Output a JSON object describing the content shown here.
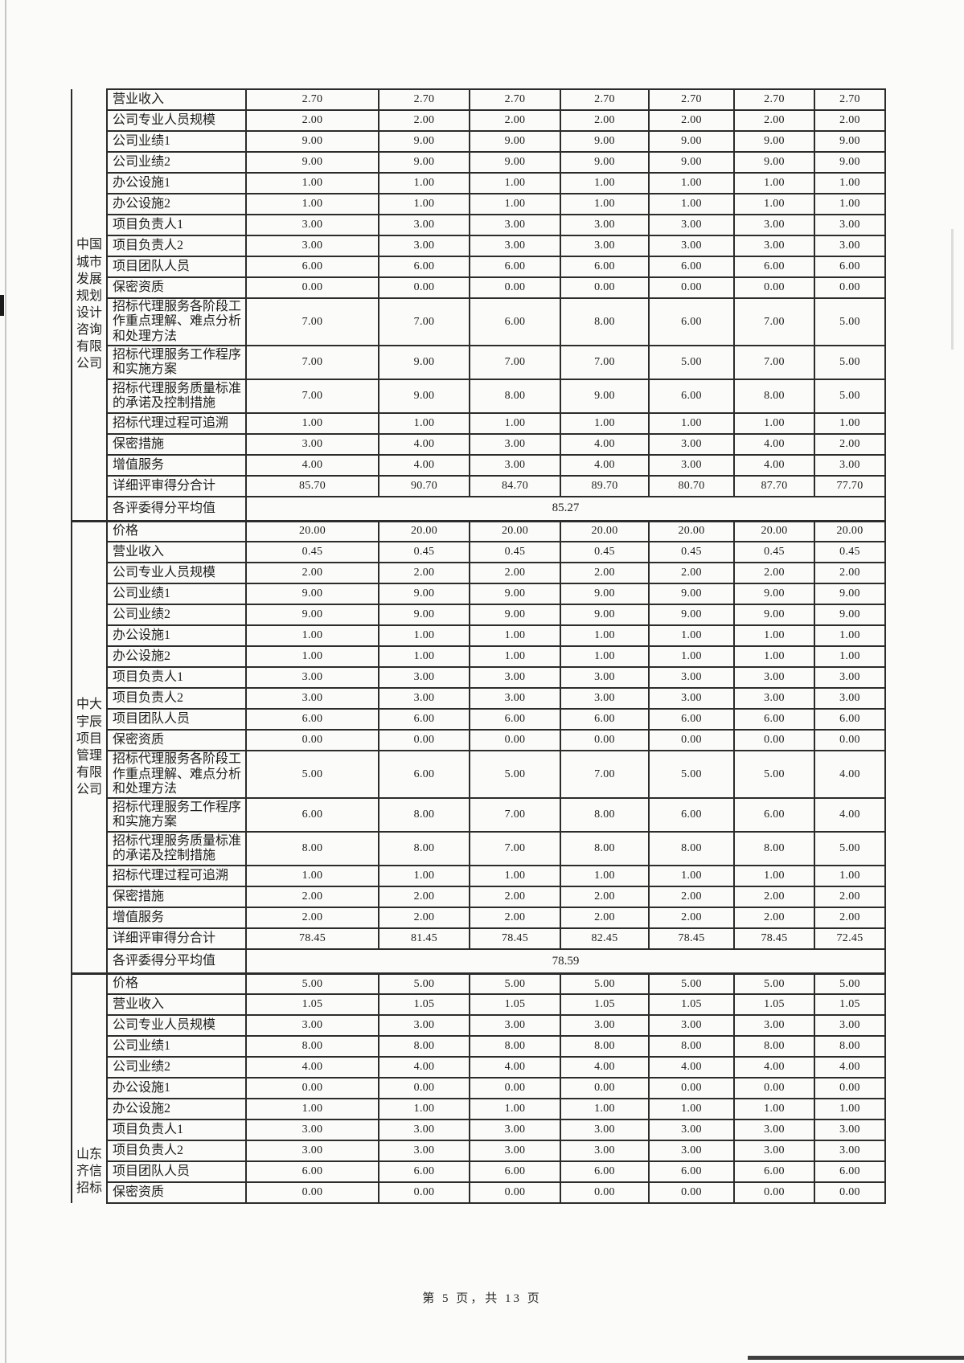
{
  "document": {
    "footer": "第 5 页，共 13 页"
  },
  "table": {
    "score_columns": 7,
    "sections": [
      {
        "company": "中国城市发展规划设计咨询有限公司",
        "company_lines": [
          "中国",
          "城市",
          "发展",
          "规划",
          "设计",
          "咨询",
          "有限",
          "公司"
        ],
        "rows": [
          {
            "label": "营业收入",
            "values": [
              "2.70",
              "2.70",
              "2.70",
              "2.70",
              "2.70",
              "2.70",
              "2.70"
            ]
          },
          {
            "label": "公司专业人员规模",
            "values": [
              "2.00",
              "2.00",
              "2.00",
              "2.00",
              "2.00",
              "2.00",
              "2.00"
            ]
          },
          {
            "label": "公司业绩1",
            "values": [
              "9.00",
              "9.00",
              "9.00",
              "9.00",
              "9.00",
              "9.00",
              "9.00"
            ]
          },
          {
            "label": "公司业绩2",
            "values": [
              "9.00",
              "9.00",
              "9.00",
              "9.00",
              "9.00",
              "9.00",
              "9.00"
            ]
          },
          {
            "label": "办公设施1",
            "values": [
              "1.00",
              "1.00",
              "1.00",
              "1.00",
              "1.00",
              "1.00",
              "1.00"
            ]
          },
          {
            "label": "办公设施2",
            "values": [
              "1.00",
              "1.00",
              "1.00",
              "1.00",
              "1.00",
              "1.00",
              "1.00"
            ]
          },
          {
            "label": "项目负责人1",
            "values": [
              "3.00",
              "3.00",
              "3.00",
              "3.00",
              "3.00",
              "3.00",
              "3.00"
            ]
          },
          {
            "label": "项目负责人2",
            "values": [
              "3.00",
              "3.00",
              "3.00",
              "3.00",
              "3.00",
              "3.00",
              "3.00"
            ]
          },
          {
            "label": "项目团队人员",
            "values": [
              "6.00",
              "6.00",
              "6.00",
              "6.00",
              "6.00",
              "6.00",
              "6.00"
            ]
          },
          {
            "label": "保密资质",
            "values": [
              "0.00",
              "0.00",
              "0.00",
              "0.00",
              "0.00",
              "0.00",
              "0.00"
            ]
          },
          {
            "label": "招标代理服务各阶段工作重点理解、难点分析和处理方法",
            "values": [
              "7.00",
              "7.00",
              "6.00",
              "8.00",
              "6.00",
              "7.00",
              "5.00"
            ]
          },
          {
            "label": "招标代理服务工作程序和实施方案",
            "values": [
              "7.00",
              "9.00",
              "7.00",
              "7.00",
              "5.00",
              "7.00",
              "5.00"
            ]
          },
          {
            "label": "招标代理服务质量标准的承诺及控制措施",
            "values": [
              "7.00",
              "9.00",
              "8.00",
              "9.00",
              "6.00",
              "8.00",
              "5.00"
            ]
          },
          {
            "label": "招标代理过程可追溯",
            "values": [
              "1.00",
              "1.00",
              "1.00",
              "1.00",
              "1.00",
              "1.00",
              "1.00"
            ]
          },
          {
            "label": "保密措施",
            "values": [
              "3.00",
              "4.00",
              "3.00",
              "4.00",
              "3.00",
              "4.00",
              "2.00"
            ]
          },
          {
            "label": "增值服务",
            "values": [
              "4.00",
              "4.00",
              "3.00",
              "4.00",
              "3.00",
              "4.00",
              "3.00"
            ]
          },
          {
            "label": "详细评审得分合计",
            "values": [
              "85.70",
              "90.70",
              "84.70",
              "89.70",
              "80.70",
              "87.70",
              "77.70"
            ]
          },
          {
            "label": "各评委得分平均值",
            "average": "85.27"
          }
        ]
      },
      {
        "company": "中大宇辰项目管理有限公司",
        "company_lines": [
          "中大",
          "宇辰",
          "项目",
          "管理",
          "有限",
          "公司"
        ],
        "rows": [
          {
            "label": "价格",
            "values": [
              "20.00",
              "20.00",
              "20.00",
              "20.00",
              "20.00",
              "20.00",
              "20.00"
            ]
          },
          {
            "label": "营业收入",
            "values": [
              "0.45",
              "0.45",
              "0.45",
              "0.45",
              "0.45",
              "0.45",
              "0.45"
            ]
          },
          {
            "label": "公司专业人员规模",
            "values": [
              "2.00",
              "2.00",
              "2.00",
              "2.00",
              "2.00",
              "2.00",
              "2.00"
            ]
          },
          {
            "label": "公司业绩1",
            "values": [
              "9.00",
              "9.00",
              "9.00",
              "9.00",
              "9.00",
              "9.00",
              "9.00"
            ]
          },
          {
            "label": "公司业绩2",
            "values": [
              "9.00",
              "9.00",
              "9.00",
              "9.00",
              "9.00",
              "9.00",
              "9.00"
            ]
          },
          {
            "label": "办公设施1",
            "values": [
              "1.00",
              "1.00",
              "1.00",
              "1.00",
              "1.00",
              "1.00",
              "1.00"
            ]
          },
          {
            "label": "办公设施2",
            "values": [
              "1.00",
              "1.00",
              "1.00",
              "1.00",
              "1.00",
              "1.00",
              "1.00"
            ]
          },
          {
            "label": "项目负责人1",
            "values": [
              "3.00",
              "3.00",
              "3.00",
              "3.00",
              "3.00",
              "3.00",
              "3.00"
            ]
          },
          {
            "label": "项目负责人2",
            "values": [
              "3.00",
              "3.00",
              "3.00",
              "3.00",
              "3.00",
              "3.00",
              "3.00"
            ]
          },
          {
            "label": "项目团队人员",
            "values": [
              "6.00",
              "6.00",
              "6.00",
              "6.00",
              "6.00",
              "6.00",
              "6.00"
            ]
          },
          {
            "label": "保密资质",
            "values": [
              "0.00",
              "0.00",
              "0.00",
              "0.00",
              "0.00",
              "0.00",
              "0.00"
            ]
          },
          {
            "label": "招标代理服务各阶段工作重点理解、难点分析和处理方法",
            "values": [
              "5.00",
              "6.00",
              "5.00",
              "7.00",
              "5.00",
              "5.00",
              "4.00"
            ]
          },
          {
            "label": "招标代理服务工作程序和实施方案",
            "values": [
              "6.00",
              "8.00",
              "7.00",
              "8.00",
              "6.00",
              "6.00",
              "4.00"
            ]
          },
          {
            "label": "招标代理服务质量标准的承诺及控制措施",
            "values": [
              "8.00",
              "8.00",
              "7.00",
              "8.00",
              "8.00",
              "8.00",
              "5.00"
            ]
          },
          {
            "label": "招标代理过程可追溯",
            "values": [
              "1.00",
              "1.00",
              "1.00",
              "1.00",
              "1.00",
              "1.00",
              "1.00"
            ]
          },
          {
            "label": "保密措施",
            "values": [
              "2.00",
              "2.00",
              "2.00",
              "2.00",
              "2.00",
              "2.00",
              "2.00"
            ]
          },
          {
            "label": "增值服务",
            "values": [
              "2.00",
              "2.00",
              "2.00",
              "2.00",
              "2.00",
              "2.00",
              "2.00"
            ]
          },
          {
            "label": "详细评审得分合计",
            "values": [
              "78.45",
              "81.45",
              "78.45",
              "82.45",
              "78.45",
              "78.45",
              "72.45"
            ]
          },
          {
            "label": "各评委得分平均值",
            "average": "78.59"
          }
        ]
      },
      {
        "company": "山东齐信招标",
        "company_lines": [
          "山东",
          "齐信",
          "招标"
        ],
        "rows": [
          {
            "label": "价格",
            "values": [
              "5.00",
              "5.00",
              "5.00",
              "5.00",
              "5.00",
              "5.00",
              "5.00"
            ]
          },
          {
            "label": "营业收入",
            "values": [
              "1.05",
              "1.05",
              "1.05",
              "1.05",
              "1.05",
              "1.05",
              "1.05"
            ]
          },
          {
            "label": "公司专业人员规模",
            "values": [
              "3.00",
              "3.00",
              "3.00",
              "3.00",
              "3.00",
              "3.00",
              "3.00"
            ]
          },
          {
            "label": "公司业绩1",
            "values": [
              "8.00",
              "8.00",
              "8.00",
              "8.00",
              "8.00",
              "8.00",
              "8.00"
            ]
          },
          {
            "label": "公司业绩2",
            "values": [
              "4.00",
              "4.00",
              "4.00",
              "4.00",
              "4.00",
              "4.00",
              "4.00"
            ]
          },
          {
            "label": "办公设施1",
            "values": [
              "0.00",
              "0.00",
              "0.00",
              "0.00",
              "0.00",
              "0.00",
              "0.00"
            ]
          },
          {
            "label": "办公设施2",
            "values": [
              "1.00",
              "1.00",
              "1.00",
              "1.00",
              "1.00",
              "1.00",
              "1.00"
            ]
          },
          {
            "label": "项目负责人1",
            "values": [
              "3.00",
              "3.00",
              "3.00",
              "3.00",
              "3.00",
              "3.00",
              "3.00"
            ]
          },
          {
            "label": "项目负责人2",
            "values": [
              "3.00",
              "3.00",
              "3.00",
              "3.00",
              "3.00",
              "3.00",
              "3.00"
            ]
          },
          {
            "label": "项目团队人员",
            "values": [
              "6.00",
              "6.00",
              "6.00",
              "6.00",
              "6.00",
              "6.00",
              "6.00"
            ]
          },
          {
            "label": "保密资质",
            "values": [
              "0.00",
              "0.00",
              "0.00",
              "0.00",
              "0.00",
              "0.00",
              "0.00"
            ]
          }
        ]
      }
    ]
  }
}
